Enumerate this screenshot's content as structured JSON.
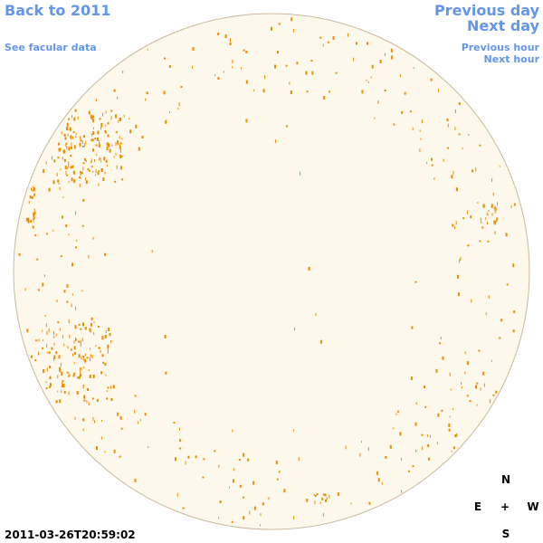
{
  "navigation": {
    "back": "Back to 2011",
    "facular_link": "See facular data",
    "previous_day": "Previous day",
    "next_day": "Next day",
    "previous_hour": "Previous hour",
    "next_hour": "Next hour"
  },
  "timestamp": "2011-03-26T20:59:02",
  "compass": {
    "north": "N",
    "east": "E",
    "center": "+",
    "west": "W",
    "south": "S"
  }
}
